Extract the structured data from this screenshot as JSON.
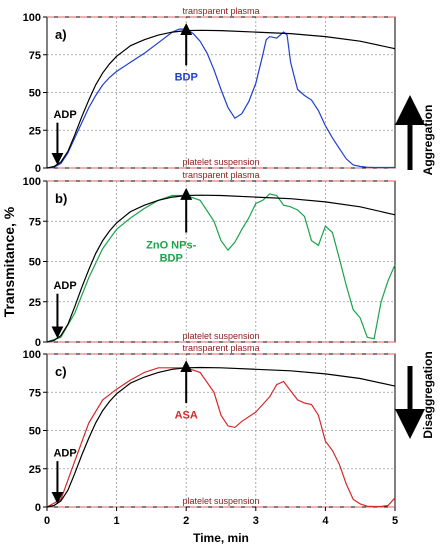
{
  "chart_data": [
    {
      "type": "line",
      "panel_label": "a)",
      "ylim": [
        0,
        100
      ],
      "xlim": [
        0,
        5
      ],
      "yticks": [
        "0",
        "25",
        "50",
        "75",
        "100"
      ],
      "grid": true,
      "top_line_label": "transparent plasma",
      "bottom_line_label": "platelet suspension",
      "arrow_labels": [
        {
          "text": "ADP",
          "color": "#000000",
          "x": 0.15
        },
        {
          "text": "BDP",
          "color": "#1f3fd0",
          "x": 2.0
        }
      ],
      "series": [
        {
          "color": "#1f3fd0",
          "x": [
            0,
            0.1,
            0.2,
            0.3,
            0.4,
            0.5,
            0.6,
            0.7,
            0.8,
            0.9,
            1.0,
            1.2,
            1.4,
            1.6,
            1.8,
            1.9,
            2.0,
            2.1,
            2.2,
            2.3,
            2.4,
            2.5,
            2.6,
            2.7,
            2.8,
            2.9,
            3.0,
            3.1,
            3.15,
            3.2,
            3.3,
            3.4,
            3.45,
            3.5,
            3.6,
            3.7,
            3.8,
            3.9,
            4.0,
            4.1,
            4.2,
            4.3,
            4.4,
            4.5,
            4.6,
            4.7,
            4.8,
            4.9,
            5.0
          ],
          "y": [
            0,
            0.5,
            3,
            10,
            20,
            30,
            40,
            48,
            55,
            60,
            64,
            70,
            76,
            83,
            90,
            92,
            92,
            89,
            84,
            76,
            65,
            52,
            40,
            33,
            36,
            44,
            56,
            75,
            85,
            87,
            86,
            90,
            88,
            70,
            52,
            48,
            45,
            38,
            28,
            20,
            13,
            6,
            2,
            1,
            0.5,
            0.3,
            0.3,
            0.3,
            0.3
          ]
        },
        {
          "color": "#000000",
          "x": [
            0,
            0.1,
            0.2,
            0.3,
            0.4,
            0.5,
            0.6,
            0.7,
            0.8,
            0.9,
            1.0,
            1.2,
            1.4,
            1.6,
            1.8,
            2.0,
            2.2,
            2.5,
            3.0,
            3.5,
            4.0,
            4.5,
            5.0
          ],
          "y": [
            0,
            1,
            4,
            11,
            22,
            34,
            45,
            55,
            63,
            69,
            74,
            81,
            85,
            88,
            90,
            91,
            91.2,
            91,
            90,
            89,
            87,
            84,
            79
          ]
        }
      ]
    },
    {
      "type": "line",
      "panel_label": "b)",
      "ylim": [
        0,
        100
      ],
      "xlim": [
        0,
        5
      ],
      "yticks": [
        "0",
        "25",
        "50",
        "75",
        "100"
      ],
      "grid": true,
      "top_line_label": "transparent plasma",
      "bottom_line_label": "platelet suspension",
      "arrow_labels": [
        {
          "text": "ADP",
          "color": "#000000",
          "x": 0.15
        },
        {
          "text": "ZnO NPs-",
          "color": "#1aa34a",
          "x": 2.0
        },
        {
          "text": "BDP",
          "color": "#1aa34a",
          "x": 2.0
        }
      ],
      "series": [
        {
          "color": "#1aa34a",
          "x": [
            0,
            0.2,
            0.4,
            0.6,
            0.8,
            1.0,
            1.2,
            1.4,
            1.6,
            1.8,
            2.0,
            2.2,
            2.4,
            2.5,
            2.6,
            2.7,
            2.8,
            2.9,
            3.0,
            3.1,
            3.2,
            3.3,
            3.4,
            3.5,
            3.6,
            3.7,
            3.8,
            3.9,
            4.0,
            4.1,
            4.2,
            4.3,
            4.4,
            4.5,
            4.6,
            4.7,
            4.8,
            4.9,
            5.0
          ],
          "y": [
            0,
            3,
            18,
            40,
            58,
            70,
            77,
            83,
            88,
            91,
            91,
            88,
            75,
            63,
            57,
            62,
            70,
            77,
            86,
            88,
            92,
            91,
            85,
            84,
            82,
            78,
            63,
            60,
            72,
            68,
            52,
            35,
            20,
            15,
            3,
            2,
            25,
            38,
            48
          ]
        },
        {
          "color": "#000000",
          "x": [
            0,
            0.1,
            0.2,
            0.3,
            0.4,
            0.5,
            0.6,
            0.7,
            0.8,
            0.9,
            1.0,
            1.2,
            1.4,
            1.6,
            1.8,
            2.0,
            2.2,
            2.5,
            3.0,
            3.5,
            4.0,
            4.5,
            5.0
          ],
          "y": [
            0,
            1,
            4,
            11,
            22,
            34,
            45,
            55,
            63,
            69,
            74,
            81,
            85,
            88,
            90,
            91,
            91.2,
            91,
            90,
            89,
            87,
            84,
            79
          ]
        }
      ]
    },
    {
      "type": "line",
      "panel_label": "c)",
      "ylim": [
        0,
        100
      ],
      "xlim": [
        0,
        5
      ],
      "yticks": [
        "0",
        "25",
        "50",
        "75",
        "100"
      ],
      "grid": true,
      "top_line_label": "transparent plasma",
      "bottom_line_label": "platelet suspension",
      "arrow_labels": [
        {
          "text": "ADP",
          "color": "#000000",
          "x": 0.15
        },
        {
          "text": "ASA",
          "color": "#d62828",
          "x": 2.0
        }
      ],
      "series": [
        {
          "color": "#d62828",
          "x": [
            0,
            0.2,
            0.4,
            0.6,
            0.8,
            1.0,
            1.2,
            1.4,
            1.6,
            1.8,
            2.0,
            2.2,
            2.4,
            2.5,
            2.6,
            2.7,
            2.8,
            3.0,
            3.2,
            3.3,
            3.4,
            3.5,
            3.6,
            3.7,
            3.8,
            3.9,
            4.0,
            4.1,
            4.2,
            4.3,
            4.4,
            4.5,
            4.6,
            4.7,
            4.8,
            4.9,
            5.0
          ],
          "y": [
            0,
            5,
            30,
            55,
            70,
            77,
            83,
            88,
            91,
            91,
            91,
            88,
            75,
            60,
            53,
            52,
            56,
            62,
            72,
            80,
            82,
            76,
            70,
            68,
            67,
            60,
            43,
            37,
            28,
            15,
            5,
            2,
            0.5,
            0.3,
            0.3,
            1,
            6
          ]
        },
        {
          "color": "#000000",
          "x": [
            0,
            0.1,
            0.2,
            0.3,
            0.4,
            0.5,
            0.6,
            0.7,
            0.8,
            0.9,
            1.0,
            1.2,
            1.4,
            1.6,
            1.8,
            2.0,
            2.2,
            2.5,
            3.0,
            3.5,
            4.0,
            4.5,
            5.0
          ],
          "y": [
            0,
            1,
            4,
            11,
            22,
            34,
            45,
            55,
            63,
            69,
            74,
            81,
            85,
            88,
            90,
            91,
            91.2,
            91,
            90,
            89,
            87,
            84,
            79
          ]
        }
      ]
    }
  ],
  "shared": {
    "ylabel": "Transmitance, %",
    "xlabel": "Time, min",
    "xticks": [
      "0",
      "1",
      "2",
      "3",
      "4",
      "5"
    ],
    "side_labels": {
      "aggregation": "Aggregation",
      "disaggregation": "Disaggregation"
    },
    "colors": {
      "reference_dashed": "#e06060",
      "grid": "#9a9a9a",
      "axis_label_red": "#8b1a1a"
    }
  }
}
